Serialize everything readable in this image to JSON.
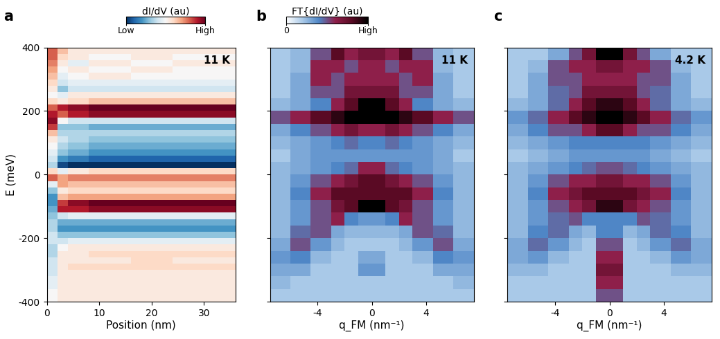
{
  "chart_data": [
    {
      "type": "heatmap",
      "title": "a",
      "annotation": "11 K",
      "x_label": "Position (nm)",
      "y_label": "E (meV)",
      "xlim": [
        0,
        36
      ],
      "ylim": [
        -400,
        400
      ],
      "xticks": [
        0,
        10,
        20,
        30
      ],
      "yticks": [
        -400,
        -200,
        0,
        200,
        400
      ],
      "x_edges": [
        0,
        2,
        4,
        8,
        16,
        24,
        36
      ],
      "y_edges": [
        400,
        380,
        360,
        340,
        320,
        300,
        280,
        260,
        240,
        220,
        200,
        180,
        160,
        140,
        120,
        100,
        80,
        60,
        40,
        20,
        0,
        -20,
        -40,
        -60,
        -80,
        -100,
        -120,
        -140,
        -160,
        -180,
        -200,
        -220,
        -240,
        -260,
        -280,
        -300,
        -320,
        -340,
        -360,
        -380,
        -400
      ],
      "cells": [
        [
          0.6,
          0.3,
          0.1,
          0.1,
          0.1,
          0.1
        ],
        [
          0.6,
          0.2,
          0.1,
          0.0,
          0.1,
          0.0
        ],
        [
          0.5,
          0.1,
          -0.1,
          0.1,
          0.0,
          0.1
        ],
        [
          0.4,
          0.0,
          0.1,
          0.0,
          0.1,
          0.0
        ],
        [
          0.3,
          -0.1,
          0.0,
          0.1,
          0.0,
          0.0
        ],
        [
          0.2,
          -0.2,
          -0.1,
          -0.1,
          -0.1,
          -0.1
        ],
        [
          0.1,
          -0.4,
          -0.2,
          -0.2,
          -0.2,
          -0.2
        ],
        [
          0.0,
          -0.1,
          0.1,
          0.1,
          0.1,
          0.1
        ],
        [
          0.2,
          0.1,
          0.2,
          0.3,
          0.3,
          0.3
        ],
        [
          0.6,
          0.8,
          0.9,
          1.0,
          1.0,
          1.0
        ],
        [
          0.8,
          0.6,
          0.8,
          0.9,
          0.9,
          0.9
        ],
        [
          0.9,
          0.0,
          -0.2,
          -0.2,
          -0.2,
          -0.2
        ],
        [
          0.7,
          -0.4,
          -0.4,
          -0.5,
          -0.5,
          -0.5
        ],
        [
          0.3,
          -0.3,
          -0.3,
          -0.3,
          -0.3,
          -0.3
        ],
        [
          0.1,
          -0.2,
          -0.3,
          -0.4,
          -0.4,
          -0.4
        ],
        [
          0.0,
          -0.3,
          -0.4,
          -0.5,
          -0.5,
          -0.5
        ],
        [
          -0.1,
          -0.4,
          -0.5,
          -0.6,
          -0.6,
          -0.6
        ],
        [
          -0.2,
          -0.6,
          -0.7,
          -0.8,
          -0.8,
          -0.8
        ],
        [
          -0.3,
          -0.9,
          -1.0,
          -1.0,
          -1.0,
          -1.0
        ],
        [
          0.2,
          -0.1,
          0.1,
          0.2,
          0.2,
          0.2
        ],
        [
          0.6,
          0.4,
          0.5,
          0.5,
          0.5,
          0.5
        ],
        [
          -0.1,
          0.4,
          0.3,
          0.3,
          0.3,
          0.3
        ],
        [
          -0.4,
          0.1,
          0.2,
          0.2,
          0.2,
          0.2
        ],
        [
          -0.6,
          0.3,
          0.4,
          0.4,
          0.4,
          0.4
        ],
        [
          -0.6,
          0.7,
          0.9,
          1.0,
          1.0,
          1.0
        ],
        [
          -0.5,
          0.8,
          0.8,
          0.9,
          0.9,
          0.9
        ],
        [
          -0.4,
          -0.2,
          -0.1,
          -0.1,
          -0.1,
          -0.1
        ],
        [
          -0.3,
          -0.5,
          -0.5,
          -0.5,
          -0.5,
          -0.5
        ],
        [
          -0.3,
          -0.6,
          -0.6,
          -0.6,
          -0.6,
          -0.6
        ],
        [
          -0.2,
          -0.4,
          -0.4,
          -0.4,
          -0.4,
          -0.4
        ],
        [
          -0.2,
          -0.2,
          -0.1,
          -0.1,
          -0.1,
          -0.1
        ],
        [
          -0.3,
          0.0,
          0.1,
          0.1,
          0.1,
          0.1
        ],
        [
          -0.3,
          0.1,
          0.1,
          0.2,
          0.2,
          0.2
        ],
        [
          -0.2,
          0.1,
          0.1,
          0.1,
          0.2,
          0.1
        ],
        [
          -0.2,
          0.1,
          0.2,
          0.2,
          0.2,
          0.2
        ],
        [
          -0.2,
          0.1,
          0.1,
          0.1,
          0.1,
          0.1
        ],
        [
          -0.1,
          0.1,
          0.1,
          0.1,
          0.1,
          0.1
        ],
        [
          -0.1,
          0.1,
          0.1,
          0.1,
          0.1,
          0.1
        ],
        [
          0.0,
          0.1,
          0.1,
          0.1,
          0.1,
          0.1
        ],
        [
          0.0,
          0.1,
          0.1,
          0.1,
          0.1,
          0.1
        ]
      ],
      "value_range": [
        -1,
        1
      ],
      "colorbar": {
        "label": "dI/dV (au)",
        "range": [
          -1,
          1
        ],
        "ticks": [
          {
            "value": -1,
            "label": "Low"
          },
          {
            "value": 1,
            "label": "High"
          }
        ]
      }
    },
    {
      "type": "heatmap",
      "title": "b",
      "annotation": "11 K",
      "x_label": "q_FM (nm⁻¹)",
      "tick_labels": "x",
      "xlim": [
        -7.5,
        7.5
      ],
      "ylim": [
        -400,
        400
      ],
      "xticks": [
        -4,
        0,
        4
      ],
      "yticks": [
        -400,
        -200,
        0,
        200,
        400
      ],
      "x_edges": [
        -7.5,
        -6,
        -4.5,
        -3,
        -2,
        -1,
        1,
        2,
        3,
        4.5,
        6,
        7.5
      ],
      "y_edges": [
        400,
        360,
        320,
        280,
        240,
        200,
        160,
        120,
        80,
        40,
        0,
        -40,
        -80,
        -120,
        -160,
        -200,
        -240,
        -280,
        -320,
        -360,
        -400
      ],
      "cells": [
        [
          0.2,
          0.25,
          0.5,
          0.8,
          0.6,
          0.7,
          0.6,
          0.8,
          0.5,
          0.25,
          0.2
        ],
        [
          0.2,
          0.25,
          0.6,
          0.6,
          0.5,
          0.6,
          0.5,
          0.6,
          0.6,
          0.25,
          0.2
        ],
        [
          0.2,
          0.3,
          0.6,
          0.5,
          0.6,
          0.6,
          0.6,
          0.5,
          0.6,
          0.3,
          0.2
        ],
        [
          0.2,
          0.3,
          0.5,
          0.5,
          0.7,
          0.7,
          0.7,
          0.5,
          0.5,
          0.3,
          0.2
        ],
        [
          0.25,
          0.3,
          0.4,
          0.6,
          0.8,
          1.0,
          0.8,
          0.6,
          0.4,
          0.3,
          0.25
        ],
        [
          0.5,
          0.6,
          0.8,
          0.9,
          1.0,
          1.0,
          1.0,
          0.9,
          0.8,
          0.6,
          0.5
        ],
        [
          0.3,
          0.4,
          0.5,
          0.6,
          0.7,
          0.6,
          0.7,
          0.6,
          0.5,
          0.4,
          0.3
        ],
        [
          0.25,
          0.3,
          0.35,
          0.4,
          0.45,
          0.4,
          0.45,
          0.4,
          0.35,
          0.3,
          0.25
        ],
        [
          0.2,
          0.3,
          0.35,
          0.35,
          0.35,
          0.35,
          0.35,
          0.35,
          0.35,
          0.3,
          0.2
        ],
        [
          0.25,
          0.3,
          0.35,
          0.4,
          0.45,
          0.6,
          0.45,
          0.4,
          0.35,
          0.3,
          0.25
        ],
        [
          0.25,
          0.35,
          0.5,
          0.6,
          0.7,
          0.8,
          0.7,
          0.6,
          0.5,
          0.35,
          0.25
        ],
        [
          0.25,
          0.4,
          0.6,
          0.8,
          0.8,
          0.8,
          0.8,
          0.8,
          0.6,
          0.4,
          0.25
        ],
        [
          0.25,
          0.35,
          0.5,
          0.7,
          0.8,
          1.0,
          0.8,
          0.7,
          0.5,
          0.35,
          0.25
        ],
        [
          0.25,
          0.35,
          0.5,
          0.6,
          0.4,
          0.35,
          0.4,
          0.6,
          0.5,
          0.35,
          0.25
        ],
        [
          0.25,
          0.45,
          0.5,
          0.3,
          0.25,
          0.25,
          0.25,
          0.3,
          0.5,
          0.45,
          0.25
        ],
        [
          0.3,
          0.5,
          0.35,
          0.25,
          0.2,
          0.2,
          0.2,
          0.25,
          0.35,
          0.5,
          0.3
        ],
        [
          0.35,
          0.4,
          0.25,
          0.2,
          0.2,
          0.3,
          0.2,
          0.2,
          0.25,
          0.4,
          0.35
        ],
        [
          0.3,
          0.3,
          0.2,
          0.2,
          0.2,
          0.35,
          0.2,
          0.2,
          0.2,
          0.3,
          0.3
        ],
        [
          0.25,
          0.2,
          0.2,
          0.2,
          0.2,
          0.2,
          0.2,
          0.2,
          0.2,
          0.2,
          0.25
        ],
        [
          0.2,
          0.2,
          0.2,
          0.2,
          0.2,
          0.2,
          0.2,
          0.2,
          0.2,
          0.2,
          0.2
        ]
      ],
      "value_range": [
        0,
        1
      ],
      "colorbar": {
        "label": "FT{dI/dV} (au)",
        "range": [
          0,
          1
        ],
        "ticks": [
          0,
          {
            "value": 1,
            "label": "High"
          }
        ]
      }
    },
    {
      "type": "heatmap",
      "title": "c",
      "annotation": "4.2 K",
      "x_label": "q_FM (nm⁻¹)",
      "tick_labels": "x",
      "xlim": [
        -7.5,
        7.5
      ],
      "ylim": [
        -400,
        400
      ],
      "xticks": [
        -4,
        0,
        4
      ],
      "yticks": [
        -400,
        -200,
        0,
        200,
        400
      ],
      "x_edges": [
        -7.5,
        -6,
        -4.5,
        -3,
        -2,
        -1,
        1,
        2,
        3,
        4.5,
        6,
        7.5
      ],
      "y_edges": [
        400,
        360,
        320,
        280,
        240,
        200,
        160,
        120,
        80,
        40,
        0,
        -40,
        -80,
        -120,
        -160,
        -200,
        -240,
        -280,
        -320,
        -360,
        -400
      ],
      "cells": [
        [
          0.2,
          0.2,
          0.3,
          0.5,
          0.7,
          1.0,
          0.7,
          0.5,
          0.3,
          0.2,
          0.2
        ],
        [
          0.2,
          0.25,
          0.5,
          0.6,
          0.6,
          0.7,
          0.6,
          0.6,
          0.5,
          0.25,
          0.2
        ],
        [
          0.2,
          0.3,
          0.5,
          0.5,
          0.6,
          0.6,
          0.6,
          0.5,
          0.5,
          0.3,
          0.2
        ],
        [
          0.2,
          0.3,
          0.45,
          0.5,
          0.7,
          0.7,
          0.7,
          0.5,
          0.45,
          0.3,
          0.2
        ],
        [
          0.25,
          0.3,
          0.45,
          0.6,
          0.8,
          0.9,
          0.8,
          0.6,
          0.45,
          0.3,
          0.25
        ],
        [
          0.35,
          0.45,
          0.6,
          0.8,
          0.9,
          1.0,
          0.9,
          0.8,
          0.6,
          0.45,
          0.35
        ],
        [
          0.3,
          0.4,
          0.5,
          0.5,
          0.6,
          0.8,
          0.6,
          0.5,
          0.5,
          0.4,
          0.3
        ],
        [
          0.25,
          0.3,
          0.35,
          0.4,
          0.4,
          0.4,
          0.4,
          0.4,
          0.35,
          0.3,
          0.25
        ],
        [
          0.2,
          0.25,
          0.3,
          0.35,
          0.35,
          0.35,
          0.35,
          0.35,
          0.3,
          0.25,
          0.2
        ],
        [
          0.25,
          0.3,
          0.35,
          0.4,
          0.45,
          0.5,
          0.45,
          0.4,
          0.35,
          0.3,
          0.25
        ],
        [
          0.25,
          0.35,
          0.5,
          0.6,
          0.6,
          0.7,
          0.6,
          0.6,
          0.5,
          0.35,
          0.25
        ],
        [
          0.25,
          0.4,
          0.6,
          0.7,
          0.8,
          0.8,
          0.8,
          0.7,
          0.6,
          0.4,
          0.25
        ],
        [
          0.25,
          0.35,
          0.5,
          0.6,
          0.7,
          0.9,
          0.7,
          0.6,
          0.5,
          0.35,
          0.25
        ],
        [
          0.25,
          0.35,
          0.45,
          0.5,
          0.4,
          0.4,
          0.4,
          0.5,
          0.45,
          0.35,
          0.25
        ],
        [
          0.25,
          0.4,
          0.45,
          0.3,
          0.25,
          0.4,
          0.25,
          0.3,
          0.45,
          0.4,
          0.25
        ],
        [
          0.3,
          0.45,
          0.35,
          0.25,
          0.2,
          0.5,
          0.2,
          0.25,
          0.35,
          0.45,
          0.3
        ],
        [
          0.3,
          0.35,
          0.25,
          0.2,
          0.2,
          0.6,
          0.2,
          0.2,
          0.25,
          0.35,
          0.3
        ],
        [
          0.25,
          0.25,
          0.2,
          0.2,
          0.2,
          0.7,
          0.2,
          0.2,
          0.2,
          0.25,
          0.25
        ],
        [
          0.2,
          0.2,
          0.2,
          0.2,
          0.2,
          0.6,
          0.2,
          0.2,
          0.2,
          0.2,
          0.2
        ],
        [
          0.2,
          0.2,
          0.2,
          0.2,
          0.2,
          0.5,
          0.2,
          0.2,
          0.2,
          0.2,
          0.2
        ]
      ],
      "value_range": [
        0,
        1
      ]
    }
  ]
}
